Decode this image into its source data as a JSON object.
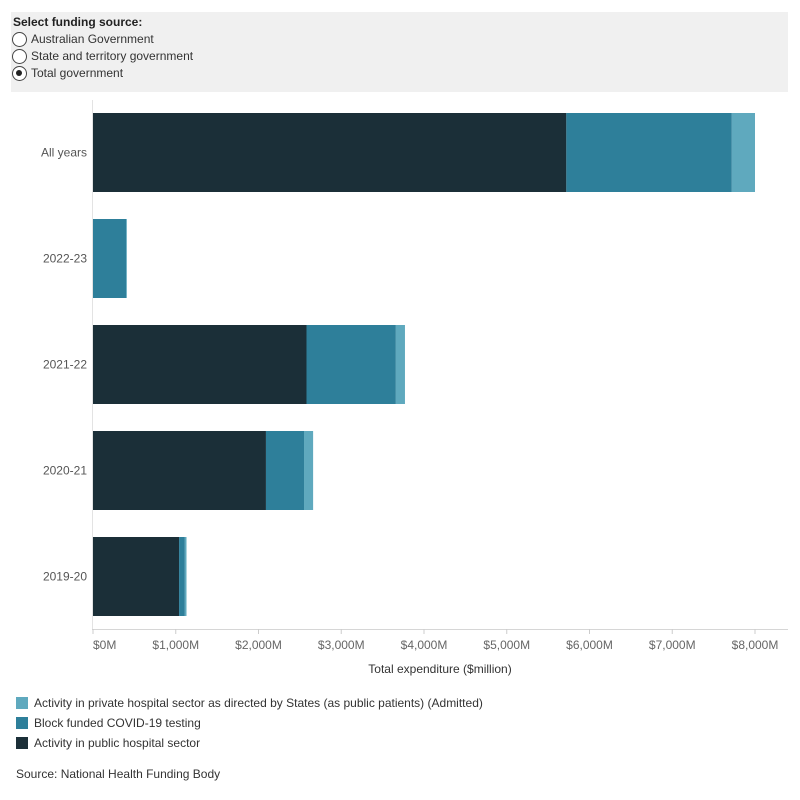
{
  "filter": {
    "title": "Select funding source:",
    "options": [
      {
        "label": "Australian Government",
        "selected": false
      },
      {
        "label": "State and territory government",
        "selected": false
      },
      {
        "label": "Total government",
        "selected": true
      }
    ]
  },
  "chart_data": {
    "type": "bar",
    "orientation": "horizontal",
    "stacked": true,
    "categories": [
      "All years",
      "2022-23",
      "2021-22",
      "2020-21",
      "2019-20"
    ],
    "series": [
      {
        "name": "Activity in public hospital sector",
        "color": "#1b2f38",
        "values": [
          5720,
          0,
          2580,
          2090,
          1040
        ]
      },
      {
        "name": "Block funded COVID-19 testing",
        "color": "#2e7f9a",
        "values": [
          2000,
          400,
          1080,
          460,
          70
        ]
      },
      {
        "name": "Activity in private hospital sector as directed by States (as public patients) (Admitted)",
        "color": "#5fa9be",
        "values": [
          280,
          10,
          110,
          110,
          20
        ]
      }
    ],
    "xlabel": "Total expenditure ($million)",
    "ylabel": "",
    "xlim": [
      0,
      8000
    ],
    "xticks": [
      0,
      1000,
      2000,
      3000,
      4000,
      5000,
      6000,
      7000,
      8000
    ],
    "xtick_labels": [
      "$0M",
      "$1,000M",
      "$2,000M",
      "$3,000M",
      "$4,000M",
      "$5,000M",
      "$6,000M",
      "$7,000M",
      "$8,000M"
    ],
    "grid": false,
    "legend_position": "bottom-left"
  },
  "legend": [
    {
      "label": "Activity in private hospital sector as directed by States (as public patients) (Admitted)",
      "color": "#5fa9be"
    },
    {
      "label": "Block funded COVID-19 testing",
      "color": "#2e7f9a"
    },
    {
      "label": "Activity in public hospital sector",
      "color": "#1b2f38"
    }
  ],
  "source": "Source: National Health Funding Body"
}
